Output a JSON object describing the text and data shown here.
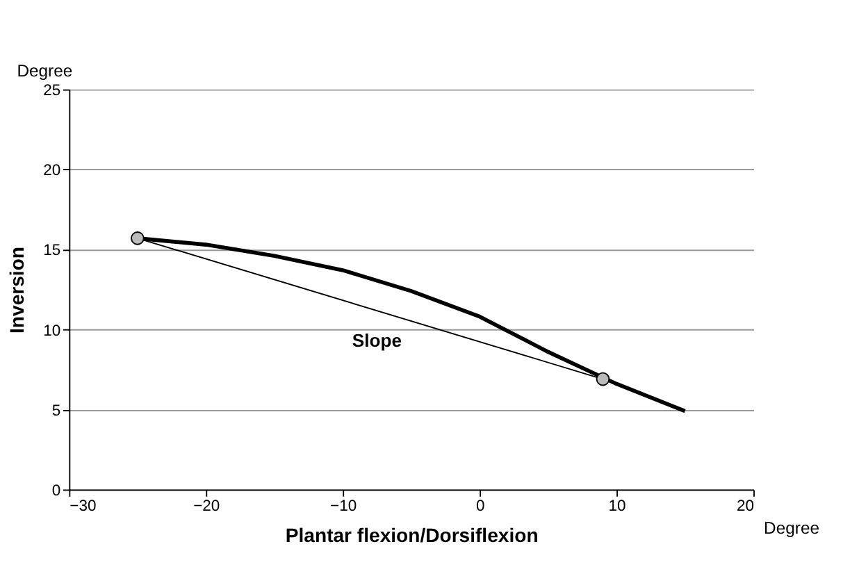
{
  "chart_data": {
    "type": "line",
    "xlabel": "Plantar flexion/Dorsiflexion",
    "ylabel": "Inversion",
    "xlim": [
      -30,
      20
    ],
    "xticks": [
      -30,
      -20,
      -10,
      0,
      10,
      20
    ],
    "ylim": [
      0,
      25
    ],
    "yticks": [
      0,
      5,
      10,
      15,
      20,
      25
    ],
    "grid": "y",
    "series": [
      {
        "color": "#000000",
        "x": [
          -25,
          -20,
          -15,
          -10,
          -5,
          0,
          5,
          10,
          15
        ],
        "values": [
          15.7,
          15.3,
          14.6,
          13.7,
          12.4,
          10.8,
          8.6,
          6.6,
          4.9
        ],
        "marker": "none",
        "line_style": "solid"
      },
      {
        "color": "#000000",
        "x": [
          -25,
          9
        ],
        "values": [
          15.7,
          6.9
        ],
        "marker": "circle",
        "line_style": "solid"
      }
    ],
    "annotations": [
      "Degree",
      "Degree",
      "Slope"
    ]
  }
}
